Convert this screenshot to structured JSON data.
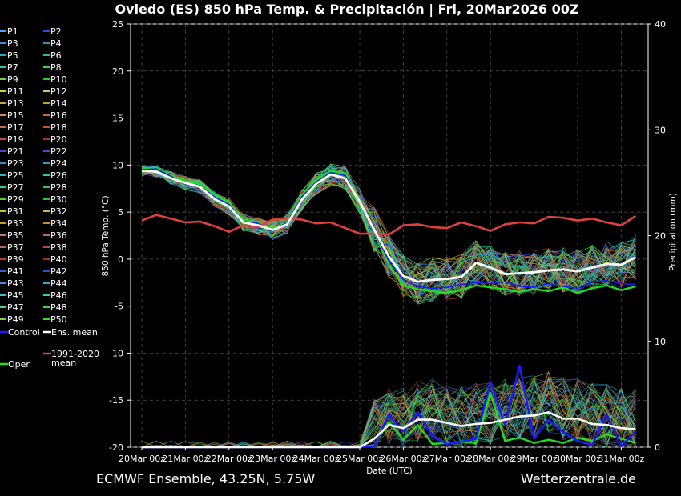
{
  "title": "Oviedo  (ES)  850 hPa Temp. & Precipitación | Fri, 20Mar2026 00Z",
  "footer_left": "ECMWF Ensemble, 43.25N, 5.75W",
  "footer_right": "Wetterzentrale.de",
  "chart_data": {
    "type": "line",
    "xlabel": "Date (UTC)",
    "ylabel_left": "850 hPa Temp. (°C)",
    "ylabel_right": "Precipitation (mm)",
    "ylim_left": [
      -20,
      25
    ],
    "ylim_right": [
      0,
      40
    ],
    "y_ticks_left": [
      25,
      20,
      15,
      10,
      5,
      0,
      -5,
      -10,
      -15,
      -20
    ],
    "y_ticks_right": [
      40,
      30,
      20,
      10,
      0
    ],
    "x_ticks": [
      "20Mar 00z",
      "21Mar 00z",
      "22Mar 00z",
      "23Mar 00z",
      "24Mar 00z",
      "25Mar 00z",
      "26Mar 00z",
      "27Mar 00z",
      "28Mar 00z",
      "29Mar 00z",
      "30Mar 00z",
      "31Mar 00z"
    ],
    "grid": true,
    "legend_placement": "left",
    "legend": [
      {
        "label": "P1",
        "color": "#4aa3ff"
      },
      {
        "label": "P2",
        "color": "#1f4fff"
      },
      {
        "label": "P3",
        "color": "#3f8fd8"
      },
      {
        "label": "P4",
        "color": "#3090c0"
      },
      {
        "label": "P5",
        "color": "#2aa7c9"
      },
      {
        "label": "P6",
        "color": "#22c08a"
      },
      {
        "label": "P7",
        "color": "#28c9a0"
      },
      {
        "label": "P8",
        "color": "#2fd16a"
      },
      {
        "label": "P9",
        "color": "#6ad13c"
      },
      {
        "label": "P10",
        "color": "#22d11e"
      },
      {
        "label": "P11",
        "color": "#c9d13c"
      },
      {
        "label": "P12",
        "color": "#d1c85a"
      },
      {
        "label": "P13",
        "color": "#d1a33c"
      },
      {
        "label": "P14",
        "color": "#d19a28"
      },
      {
        "label": "P15",
        "color": "#d18a50"
      },
      {
        "label": "P16",
        "color": "#d16a28"
      },
      {
        "label": "P17",
        "color": "#c96a50"
      },
      {
        "label": "P18",
        "color": "#c9502a"
      },
      {
        "label": "P19",
        "color": "#c94a3a"
      },
      {
        "label": "P20",
        "color": "#b82a2a"
      },
      {
        "label": "P21",
        "color": "#3a4fd1"
      },
      {
        "label": "P22",
        "color": "#2a5ad1"
      },
      {
        "label": "P23",
        "color": "#3a8ad1"
      },
      {
        "label": "P24",
        "color": "#2a9ad1"
      },
      {
        "label": "P25",
        "color": "#2ab8c9"
      },
      {
        "label": "P26",
        "color": "#2ac9a0"
      },
      {
        "label": "P27",
        "color": "#3ac98a"
      },
      {
        "label": "P28",
        "color": "#2ac950"
      },
      {
        "label": "P29",
        "color": "#5ac93a"
      },
      {
        "label": "P30",
        "color": "#2ac92a"
      },
      {
        "label": "P31",
        "color": "#b8c93a"
      },
      {
        "label": "P32",
        "color": "#c9b83a"
      },
      {
        "label": "P33",
        "color": "#c99a2a"
      },
      {
        "label": "P34",
        "color": "#c98a3a"
      },
      {
        "label": "P35",
        "color": "#c97a5a"
      },
      {
        "label": "P36",
        "color": "#c96a3a"
      },
      {
        "label": "P37",
        "color": "#b86a5a"
      },
      {
        "label": "P38",
        "color": "#b84a2a"
      },
      {
        "label": "P39",
        "color": "#b83a3a"
      },
      {
        "label": "P40",
        "color": "#a82a2a"
      },
      {
        "label": "P41",
        "color": "#3a5ae0"
      },
      {
        "label": "P42",
        "color": "#2a4ae0"
      },
      {
        "label": "P43",
        "color": "#4a8ae0"
      },
      {
        "label": "P44",
        "color": "#3aa0e0"
      },
      {
        "label": "P45",
        "color": "#3ac0d0"
      },
      {
        "label": "P46",
        "color": "#2ad0b0"
      },
      {
        "label": "P47",
        "color": "#4ad090"
      },
      {
        "label": "P48",
        "color": "#3ad060"
      },
      {
        "label": "P49",
        "color": "#7ad03a"
      },
      {
        "label": "P50",
        "color": "#2ae02a"
      },
      {
        "label": "Control",
        "color": "#1a1aff"
      },
      {
        "label": "Ens. mean",
        "color": "#ffffff"
      },
      {
        "label": "Oper",
        "color": "#22dd22"
      },
      {
        "label": "1991-2020\nmean",
        "color": "#e04040"
      }
    ],
    "ens_mean_temp": [
      9.4,
      9.3,
      8.6,
      8.1,
      7.7,
      6.4,
      5.6,
      3.9,
      3.6,
      3.1,
      3.7,
      6.3,
      8.0,
      9.0,
      8.6,
      6.1,
      3.1,
      0.3,
      -1.8,
      -2.4,
      -2.2,
      -2.1,
      -1.9,
      -0.4,
      -0.9,
      -1.6,
      -1.5,
      -1.4,
      -1.2,
      -1.1,
      -1.3,
      -0.9,
      -0.5,
      -0.6,
      0.2
    ],
    "climate_mean_temp": [
      4.1,
      4.7,
      4.3,
      3.9,
      4.0,
      3.5,
      2.9,
      3.6,
      3.4,
      4.2,
      4.3,
      4.2,
      3.8,
      3.9,
      3.3,
      2.7,
      2.7,
      2.6,
      3.6,
      3.7,
      3.4,
      3.3,
      3.9,
      3.5,
      3.0,
      3.7,
      3.9,
      3.8,
      4.5,
      4.4,
      4.1,
      4.3,
      3.9,
      3.6,
      4.6
    ],
    "oper_temp": [
      9.6,
      9.7,
      8.9,
      8.3,
      8.0,
      6.9,
      6.0,
      4.2,
      3.9,
      3.2,
      4.0,
      6.8,
      8.4,
      9.4,
      9.1,
      6.2,
      2.9,
      -0.6,
      -2.8,
      -3.2,
      -3.4,
      -3.6,
      -3.3,
      -2.8,
      -3.0,
      -3.2,
      -3.5,
      -3.2,
      -3.4,
      -3.0,
      -3.6,
      -3.1,
      -2.8,
      -3.3,
      -2.9
    ],
    "control_temp": [
      9.5,
      9.6,
      8.8,
      8.0,
      7.8,
      6.6,
      5.8,
      4.0,
      3.8,
      3.0,
      3.9,
      6.6,
      8.2,
      9.2,
      8.9,
      6.0,
      3.0,
      -0.2,
      -2.2,
      -2.9,
      -3.1,
      -3.0,
      -2.7,
      -2.5,
      -2.6,
      -2.4,
      -2.9,
      -3.0,
      -2.6,
      -2.9,
      -3.1,
      -2.4,
      -2.3,
      -2.6,
      -2.7
    ],
    "ens_mean_precip": [
      0,
      0,
      0,
      0,
      0,
      0,
      0,
      0,
      0,
      0,
      0,
      0,
      0,
      0,
      0,
      0,
      0.8,
      2.1,
      1.8,
      2.6,
      2.6,
      2.3,
      2.0,
      2.2,
      2.3,
      2.6,
      2.9,
      3.0,
      3.3,
      2.7,
      2.7,
      2.2,
      2.1,
      1.8,
      1.7
    ],
    "control_precip": [
      0,
      0,
      0,
      0,
      0,
      0,
      0,
      0,
      0,
      0,
      0,
      0,
      0,
      0,
      0,
      0,
      0.1,
      3.1,
      1.5,
      3.3,
      1.0,
      0.3,
      0.5,
      0.8,
      6.2,
      2.1,
      7.7,
      0.8,
      2.6,
      1.4,
      0.6,
      0.2,
      3.1,
      0.1,
      1.5
    ],
    "oper_precip": [
      0,
      0,
      0,
      0,
      0,
      0,
      0,
      0,
      0,
      0,
      0,
      0,
      0,
      0,
      0,
      0,
      0.2,
      2.4,
      0.7,
      2.1,
      0.3,
      0.4,
      0.5,
      0.4,
      5.1,
      0.6,
      0.9,
      0.4,
      0.7,
      0.4,
      0.9,
      0.6,
      1.2,
      0.8,
      0.4
    ]
  }
}
